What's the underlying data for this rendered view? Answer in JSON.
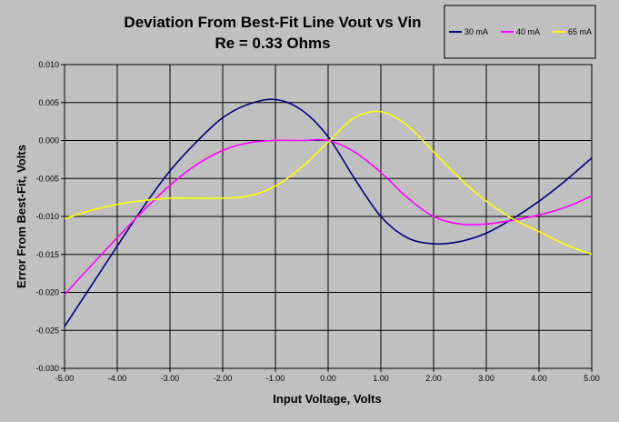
{
  "chart_data": {
    "type": "line",
    "title": "Deviation From Best-Fit Line Vout vs Vin",
    "subtitle": "Re = 0.33 Ohms",
    "xlabel": "Input Voltage, Volts",
    "ylabel": "Error From Best-Fit, Volts",
    "xlim": [
      -5,
      5
    ],
    "ylim": [
      -0.03,
      0.01
    ],
    "xticks": [
      -5,
      -4,
      -3,
      -2,
      -1,
      0,
      1,
      2,
      3,
      4,
      5
    ],
    "xtick_labels": [
      "-5.00",
      "-4.00",
      "-3.00",
      "-2.00",
      "-1.00",
      "0.00",
      "1.00",
      "2.00",
      "3.00",
      "4.00",
      "5.00"
    ],
    "yticks": [
      0.01,
      0.005,
      0.0,
      -0.005,
      -0.01,
      -0.015,
      -0.02,
      -0.025,
      -0.03
    ],
    "ytick_labels": [
      "0.010",
      "0.005",
      "0.000",
      "-0.005",
      "-0.010",
      "-0.015",
      "-0.020",
      "-0.025",
      "-0.030"
    ],
    "grid": true,
    "legend_position": "top-right",
    "plot_background": "#c0c0c0",
    "series": [
      {
        "name": "30 mA",
        "color": "#000080",
        "x": [
          -5,
          -4.5,
          -4,
          -3.5,
          -3,
          -2.5,
          -2,
          -1.5,
          -1,
          -0.5,
          0,
          0.5,
          1,
          1.5,
          2,
          2.5,
          3,
          3.5,
          4,
          4.5,
          5
        ],
        "y": [
          -0.0245,
          -0.0192,
          -0.0139,
          -0.0087,
          -0.004,
          -0.0002,
          0.003,
          0.0048,
          0.0054,
          0.004,
          0.0005,
          -0.005,
          -0.01,
          -0.0128,
          -0.0136,
          -0.0133,
          -0.0122,
          -0.0103,
          -0.008,
          -0.0053,
          -0.0023
        ]
      },
      {
        "name": "40 mA",
        "color": "#ff00ff",
        "x": [
          -5,
          -4.5,
          -4,
          -3.5,
          -3,
          -2.5,
          -2,
          -1.5,
          -1,
          -0.5,
          0,
          0.5,
          1,
          1.5,
          2,
          2.5,
          3,
          3.5,
          4,
          4.5,
          5
        ],
        "y": [
          -0.0203,
          -0.0165,
          -0.0128,
          -0.0092,
          -0.0059,
          -0.0032,
          -0.0013,
          -0.0003,
          0.0,
          0.0,
          0.0,
          -0.0015,
          -0.0042,
          -0.0075,
          -0.01,
          -0.011,
          -0.011,
          -0.0105,
          -0.0098,
          -0.0088,
          -0.0073
        ]
      },
      {
        "name": "65 mA",
        "color": "#ffff00",
        "x": [
          -5,
          -4.5,
          -4,
          -3.5,
          -3,
          -2.5,
          -2,
          -1.5,
          -1,
          -0.5,
          0,
          0.5,
          1,
          1.5,
          2,
          2.5,
          3,
          3.5,
          4,
          4.5,
          5
        ],
        "y": [
          -0.0103,
          -0.0092,
          -0.0084,
          -0.0079,
          -0.0076,
          -0.0076,
          -0.0076,
          -0.0073,
          -0.006,
          -0.0035,
          -0.0002,
          0.003,
          0.0038,
          0.002,
          -0.0015,
          -0.005,
          -0.008,
          -0.0103,
          -0.012,
          -0.0137,
          -0.015
        ]
      }
    ]
  }
}
